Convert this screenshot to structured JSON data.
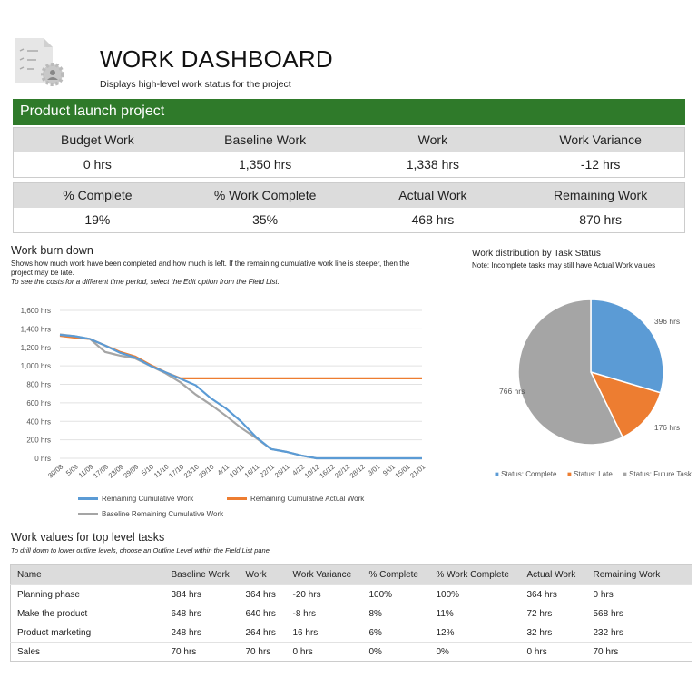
{
  "header": {
    "title": "WORK DASHBOARD",
    "subtitle": "Displays high-level work status for the project",
    "icon": "document-gear-icon"
  },
  "project": {
    "name": "Product launch project",
    "color": "#2f7a2a"
  },
  "stats1": [
    {
      "label": "Budget Work",
      "value": "0 hrs"
    },
    {
      "label": "Baseline Work",
      "value": "1,350 hrs"
    },
    {
      "label": "Work",
      "value": "1,338 hrs"
    },
    {
      "label": "Work Variance",
      "value": "-12 hrs"
    }
  ],
  "stats2": [
    {
      "label": "% Complete",
      "value": "19%"
    },
    {
      "label": "% Work Complete",
      "value": "35%"
    },
    {
      "label": "Actual Work",
      "value": "468 hrs"
    },
    {
      "label": "Remaining Work",
      "value": "870 hrs"
    }
  ],
  "burndown": {
    "title": "Work burn down",
    "desc": "Shows how much work have been completed and how much is left. If the remaining cumulative work line is steeper, then the project may be late.",
    "hint": "To see the costs for a different time period, select the Edit option from the Field List."
  },
  "pie": {
    "title": "Work distribution by Task Status",
    "note": "Note: Incomplete tasks may still have Actual Work values"
  },
  "chart_data": [
    {
      "type": "line",
      "ylim": [
        0,
        1600
      ],
      "yticks": [
        "0 hrs",
        "200 hrs",
        "400 hrs",
        "600 hrs",
        "800 hrs",
        "1,000 hrs",
        "1,200 hrs",
        "1,400 hrs",
        "1,600 hrs"
      ],
      "grid": true,
      "legend_position": "bottom",
      "categories": [
        "30/08",
        "5/09",
        "11/09",
        "17/09",
        "23/09",
        "29/09",
        "5/10",
        "11/10",
        "17/10",
        "23/10",
        "29/10",
        "4/11",
        "10/11",
        "16/11",
        "22/11",
        "28/11",
        "4/12",
        "10/12",
        "16/12",
        "22/12",
        "28/12",
        "3/01",
        "9/01",
        "15/01",
        "21/01"
      ],
      "series": [
        {
          "name": "Remaining Cumulative Work",
          "color": "#5b9bd5",
          "values": [
            1335,
            1320,
            1290,
            1220,
            1140,
            1090,
            1000,
            930,
            860,
            790,
            650,
            540,
            400,
            230,
            100,
            70,
            30,
            0,
            0,
            0,
            0,
            0,
            0,
            0,
            0
          ]
        },
        {
          "name": "Remaining Cumulative Actual Work",
          "color": "#ed7d31",
          "values": [
            1325,
            1305,
            1290,
            1220,
            1150,
            1100,
            1010,
            930,
            865,
            865,
            865,
            865,
            865,
            865,
            865,
            865,
            865,
            865,
            865,
            865,
            865,
            865,
            865,
            865,
            865
          ]
        },
        {
          "name": "Baseline Remaining Cumulative Work",
          "color": "#a5a5a5",
          "values": [
            1340,
            1320,
            1290,
            1150,
            1110,
            1080,
            1000,
            920,
            820,
            690,
            580,
            460,
            330,
            220,
            100,
            70,
            30,
            0,
            0,
            0,
            0,
            0,
            0,
            0,
            0
          ]
        }
      ]
    },
    {
      "type": "pie",
      "legend_position": "bottom",
      "slices": [
        {
          "name": "Status: Complete",
          "value": 396,
          "label": "396 hrs",
          "color": "#5b9bd5"
        },
        {
          "name": "Status: Late",
          "value": 176,
          "label": "176 hrs",
          "color": "#ed7d31"
        },
        {
          "name": "Status: Future Task",
          "value": 766,
          "label": "766 hrs",
          "color": "#a5a5a5"
        }
      ]
    }
  ],
  "tasks": {
    "title": "Work values for top level tasks",
    "hint": "To drill down to lower outline levels, choose an Outline Level within the Field List pane.",
    "columns": [
      "Name",
      "Baseline Work",
      "Work",
      "Work Variance",
      "% Complete",
      "% Work Complete",
      "Actual Work",
      "Remaining Work"
    ],
    "rows": [
      [
        "Planning phase",
        "384 hrs",
        "364 hrs",
        "-20 hrs",
        "100%",
        "100%",
        "364 hrs",
        "0 hrs"
      ],
      [
        "Make the product",
        "648 hrs",
        "640 hrs",
        "-8 hrs",
        "8%",
        "11%",
        "72 hrs",
        "568 hrs"
      ],
      [
        "Product marketing",
        "248 hrs",
        "264 hrs",
        "16 hrs",
        "6%",
        "12%",
        "32 hrs",
        "232 hrs"
      ],
      [
        "Sales",
        "70 hrs",
        "70 hrs",
        "0 hrs",
        "0%",
        "0%",
        "0 hrs",
        "70 hrs"
      ]
    ]
  }
}
